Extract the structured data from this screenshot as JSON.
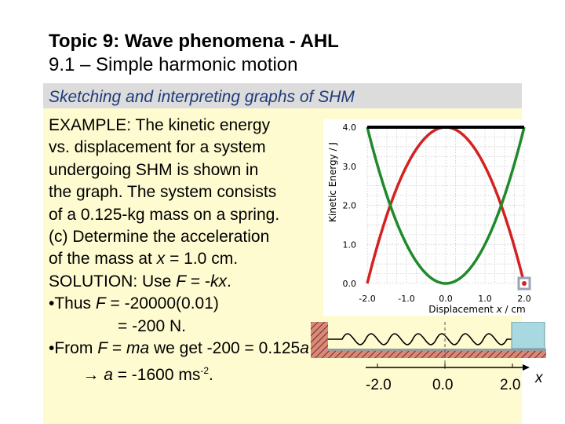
{
  "slide": {
    "title_line1": "Topic 9: Wave phenomena - AHL",
    "title_line2": "9.1 – Simple harmonic motion",
    "subheading": "Sketching and interpreting graphs of SHM"
  },
  "text": {
    "l1": "EXAMPLE: The kinetic energy",
    "l2": "vs. displacement for a system",
    "l3": "undergoing SHM is shown in",
    "l4": "the graph. The system consists",
    "l5": "of a 0.125-kg mass on a spring.",
    "l6": "(c) Determine the acceleration",
    "l7a": "of the mass at ",
    "l7b": "x",
    "l7c": " = 1.0 cm.",
    "l8a": "SOLUTION: Use ",
    "l8b": "F",
    "l8c": " = -",
    "l8d": "kx",
    "l8e": ".",
    "l9a": "•Thus ",
    "l9b": "F",
    "l9c": " = -20000(0.01)",
    "l10": "= -200 N.",
    "l11a": "•From ",
    "l11b": "F",
    "l11c": " = ",
    "l11d": "ma",
    "l11e": " we get -200 = 0.125",
    "l11f": "a",
    "l12a": "→ ",
    "l12b": "a",
    "l12c": " = -1600 ms",
    "l12d": "-2",
    "l12e": "."
  },
  "spring_axis": {
    "left_label": "-2.0",
    "mid_label": "0.0",
    "right_label": "2.0",
    "x_label": "x"
  },
  "chart_data": {
    "type": "line",
    "xlabel": "Displacement x / cm",
    "ylabel": "Kinetic Energy / J",
    "xlim": [
      -2.0,
      2.0
    ],
    "ylim": [
      0.0,
      4.0
    ],
    "x_ticks": [
      "-2.0",
      "-1.0",
      "0.0",
      "1.0",
      "2.0"
    ],
    "y_ticks": [
      "0.0",
      "1.0",
      "2.0",
      "3.0",
      "4.0"
    ],
    "grid": true,
    "series": [
      {
        "color": "#d42020",
        "x": [
          -2.0,
          -1.5,
          -1.0,
          -0.5,
          0.0,
          0.5,
          1.0,
          1.5,
          2.0
        ],
        "y": [
          0.0,
          1.75,
          3.0,
          3.75,
          4.0,
          3.75,
          3.0,
          1.75,
          0.0
        ]
      },
      {
        "color": "#1f8a2a",
        "x": [
          -2.0,
          -1.5,
          -1.0,
          -0.5,
          0.0,
          0.5,
          1.0,
          1.5,
          2.0
        ],
        "y": [
          4.0,
          2.25,
          1.0,
          0.25,
          0.0,
          0.25,
          1.0,
          2.25,
          4.0
        ]
      },
      {
        "color": "#000000",
        "x": [
          -2.0,
          2.0
        ],
        "y": [
          4.0,
          4.0
        ]
      }
    ]
  }
}
